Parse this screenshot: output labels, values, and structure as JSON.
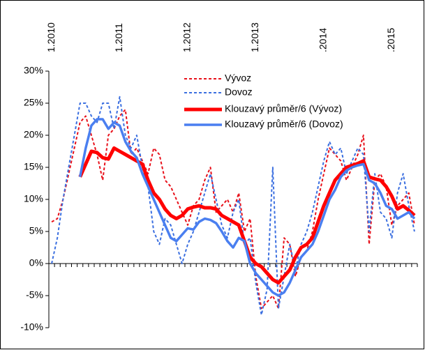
{
  "chart_data": {
    "type": "line",
    "categories": [
      "1.2010",
      null,
      null,
      null,
      null,
      null,
      null,
      null,
      null,
      null,
      null,
      null,
      "1.2011",
      null,
      null,
      null,
      null,
      null,
      null,
      null,
      null,
      null,
      null,
      null,
      "1.2012",
      null,
      null,
      null,
      null,
      null,
      null,
      null,
      null,
      null,
      null,
      null,
      "1.2013",
      null,
      null,
      null,
      null,
      null,
      null,
      null,
      null,
      null,
      null,
      null,
      ".2014",
      null,
      null,
      null,
      null,
      null,
      null,
      null,
      null,
      null,
      null,
      null,
      ".2015",
      null,
      null,
      null,
      null
    ],
    "ylim": [
      -10,
      30
    ],
    "yticks": [
      {
        "value": -10,
        "label": "-10%"
      },
      {
        "value": -5,
        "label": "-5%"
      },
      {
        "value": 0,
        "label": "0%"
      },
      {
        "value": 5,
        "label": "5%"
      },
      {
        "value": 10,
        "label": "10%"
      },
      {
        "value": 15,
        "label": "15%"
      },
      {
        "value": 20,
        "label": "20%"
      },
      {
        "value": 25,
        "label": "25%"
      },
      {
        "value": 30,
        "label": "30%"
      }
    ],
    "series": [
      {
        "name": "Vývoz",
        "color": "#e8101a",
        "style": "dotted",
        "values": [
          6.5,
          7,
          10,
          14,
          18,
          22,
          23,
          20,
          17,
          13,
          20,
          21,
          23,
          24,
          17,
          18,
          16,
          14,
          18,
          17,
          13,
          12,
          10,
          8,
          6,
          9,
          10,
          13,
          15,
          8,
          9,
          10,
          8,
          11,
          5,
          7,
          -2,
          -7,
          -6,
          -5,
          -7,
          4,
          3,
          -2,
          1,
          2,
          5,
          10,
          14,
          18,
          17,
          16,
          13,
          15,
          17,
          20,
          3,
          13,
          14,
          12,
          6,
          9,
          10,
          11,
          6
        ]
      },
      {
        "name": "Dovoz",
        "color": "#3b6fe0",
        "style": "dotted",
        "values": [
          0,
          4,
          10,
          15,
          20,
          25,
          25,
          23,
          22,
          25,
          25,
          21,
          26,
          20,
          18,
          20,
          15,
          12,
          5,
          3,
          7,
          6,
          3,
          0,
          3,
          5,
          8,
          11,
          14,
          10,
          6,
          4,
          8,
          10,
          3,
          4,
          -3,
          -8,
          -4,
          15,
          -7,
          -2,
          3,
          -1,
          3,
          5,
          8,
          12,
          16,
          19,
          17,
          18,
          14,
          16,
          18,
          17,
          5,
          14,
          8,
          7,
          4,
          11,
          14,
          9,
          5
        ]
      },
      {
        "name": "Klouzavý průměr/6 (Vývoz)",
        "color": "#ff0000",
        "style": "thick",
        "values": [
          null,
          null,
          null,
          null,
          null,
          13.5,
          15.5,
          17.5,
          17.3,
          16.5,
          16.3,
          18,
          17.5,
          17,
          16.5,
          16,
          15.5,
          13,
          11,
          10,
          8.5,
          7.5,
          7,
          7.5,
          8.5,
          8.8,
          9,
          8.7,
          8.7,
          8.5,
          7.5,
          7,
          6.5,
          6,
          3.5,
          1,
          0,
          -0.5,
          -1.5,
          -2.5,
          -3,
          -2,
          -1,
          1,
          2.5,
          3,
          4,
          6.5,
          9,
          11,
          13,
          14,
          15,
          15.3,
          15.6,
          16,
          13.5,
          13.2,
          13,
          12,
          10.5,
          8.5,
          9,
          8.3,
          7.5
        ]
      },
      {
        "name": "Klouzavý průměr/6 (Dovoz)",
        "color": "#4a7ff0",
        "style": "medium",
        "values": [
          null,
          null,
          null,
          null,
          null,
          13.5,
          18,
          21.5,
          22.5,
          22.5,
          21,
          22,
          21.5,
          19,
          17.5,
          16.5,
          14,
          12,
          10,
          8,
          6,
          4,
          3.5,
          4.5,
          5.5,
          5.3,
          6.5,
          7,
          6.8,
          6.3,
          5,
          3.5,
          2.5,
          4,
          3.5,
          0,
          -1.5,
          -2.5,
          -3.5,
          -4.5,
          -5,
          -4.5,
          -3,
          -1,
          1,
          2,
          3,
          5,
          7.5,
          10,
          11.5,
          13.5,
          14.5,
          15,
          15.3,
          15.5,
          13,
          12.5,
          11,
          9,
          8.5,
          7,
          7.5,
          8,
          7
        ]
      }
    ]
  }
}
